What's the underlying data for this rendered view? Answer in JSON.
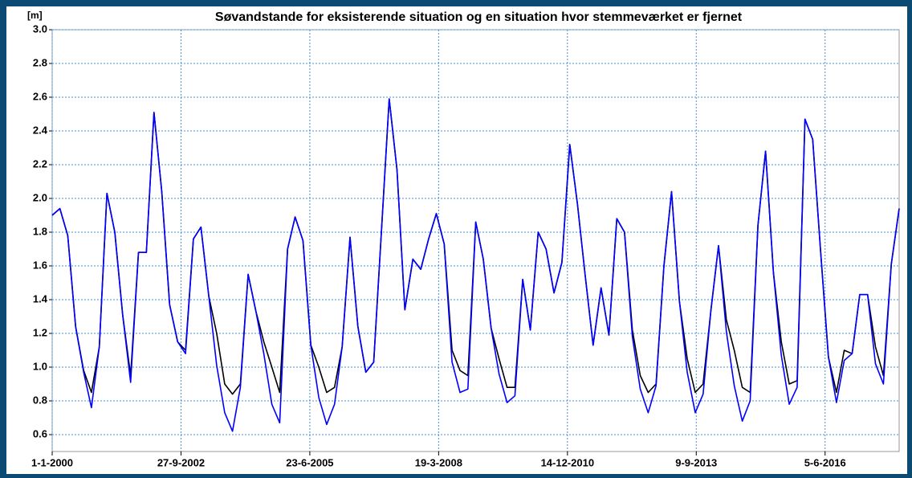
{
  "chart_data": {
    "type": "line",
    "title": "Søvandstande for eksisterende situation og en situation hvor stemmeværket er fjernet",
    "y_label": "[m]",
    "x": [
      "2000-01-01",
      "2000-03-01",
      "2000-05-01",
      "2000-07-01",
      "2000-09-01",
      "2000-11-01",
      "2001-01-01",
      "2001-03-01",
      "2001-05-01",
      "2001-07-01",
      "2001-09-01",
      "2001-11-01",
      "2002-01-01",
      "2002-03-01",
      "2002-05-01",
      "2002-07-01",
      "2002-09-01",
      "2002-11-01",
      "2003-01-01",
      "2003-03-01",
      "2003-05-01",
      "2003-07-01",
      "2003-09-01",
      "2003-11-01",
      "2004-01-01",
      "2004-03-01",
      "2004-05-01",
      "2004-07-01",
      "2004-09-01",
      "2004-11-01",
      "2005-01-01",
      "2005-03-01",
      "2005-05-01",
      "2005-07-01",
      "2005-09-01",
      "2005-11-01",
      "2006-01-01",
      "2006-03-01",
      "2006-05-01",
      "2006-07-01",
      "2006-09-01",
      "2006-11-01",
      "2007-01-01",
      "2007-03-01",
      "2007-05-01",
      "2007-07-01",
      "2007-09-01",
      "2007-11-01",
      "2008-01-01",
      "2008-03-01",
      "2008-05-01",
      "2008-07-01",
      "2008-09-01",
      "2008-11-01",
      "2009-01-01",
      "2009-03-01",
      "2009-05-01",
      "2009-07-01",
      "2009-09-01",
      "2009-11-01",
      "2010-01-01",
      "2010-03-01",
      "2010-05-01",
      "2010-07-01",
      "2010-09-01",
      "2010-11-01",
      "2011-01-01",
      "2011-03-01",
      "2011-05-01",
      "2011-07-01",
      "2011-09-01",
      "2011-11-01",
      "2012-01-01",
      "2012-03-01",
      "2012-05-01",
      "2012-07-01",
      "2012-09-01",
      "2012-11-01",
      "2013-01-01",
      "2013-03-01",
      "2013-05-01",
      "2013-07-01",
      "2013-09-01",
      "2013-11-01",
      "2014-01-01",
      "2014-03-01",
      "2014-05-01",
      "2014-07-01",
      "2014-09-01",
      "2014-11-01",
      "2015-01-01",
      "2015-03-01",
      "2015-05-01",
      "2015-07-01",
      "2015-09-01",
      "2015-11-01",
      "2016-01-01",
      "2016-03-01",
      "2016-05-01",
      "2016-07-01",
      "2016-09-01",
      "2016-11-01",
      "2017-01-01",
      "2017-03-01",
      "2017-05-01",
      "2017-07-01",
      "2017-09-01",
      "2017-11-01",
      "2018-01-01"
    ],
    "series": [
      {
        "color": "#000000",
        "values": [
          1.9,
          1.94,
          1.78,
          1.24,
          0.98,
          0.85,
          1.12,
          2.03,
          1.8,
          1.31,
          0.95,
          1.68,
          1.68,
          2.51,
          2.04,
          1.37,
          1.15,
          1.1,
          1.76,
          1.83,
          1.42,
          1.2,
          0.9,
          0.84,
          0.9,
          1.55,
          1.33,
          1.15,
          1.0,
          0.85,
          1.7,
          1.89,
          1.75,
          1.13,
          1.0,
          0.85,
          0.88,
          1.12,
          1.77,
          1.24,
          0.97,
          1.03,
          1.82,
          2.59,
          2.17,
          1.34,
          1.64,
          1.58,
          1.76,
          1.91,
          1.73,
          1.1,
          0.98,
          0.95,
          1.86,
          1.64,
          1.23,
          1.05,
          0.88,
          0.88,
          1.52,
          1.22,
          1.8,
          1.7,
          1.44,
          1.62,
          2.32,
          1.97,
          1.54,
          1.13,
          1.47,
          1.19,
          1.88,
          1.8,
          1.22,
          0.95,
          0.85,
          0.9,
          1.6,
          2.04,
          1.39,
          1.05,
          0.85,
          0.9,
          1.34,
          1.72,
          1.28,
          1.1,
          0.88,
          0.85,
          1.84,
          2.28,
          1.56,
          1.15,
          0.9,
          0.92,
          2.47,
          2.35,
          1.69,
          1.06,
          0.85,
          1.1,
          1.08,
          1.43,
          1.43,
          1.12,
          0.95,
          1.61,
          1.94
        ]
      },
      {
        "color": "#0000ff",
        "values": [
          1.9,
          1.94,
          1.78,
          1.24,
          0.97,
          0.76,
          1.12,
          2.03,
          1.8,
          1.31,
          0.91,
          1.68,
          1.68,
          2.51,
          2.04,
          1.37,
          1.15,
          1.08,
          1.76,
          1.83,
          1.42,
          1.01,
          0.73,
          0.62,
          0.88,
          1.55,
          1.33,
          1.08,
          0.78,
          0.67,
          1.7,
          1.89,
          1.75,
          1.13,
          0.82,
          0.66,
          0.78,
          1.12,
          1.77,
          1.24,
          0.97,
          1.03,
          1.82,
          2.59,
          2.17,
          1.34,
          1.64,
          1.58,
          1.76,
          1.91,
          1.73,
          1.03,
          0.85,
          0.87,
          1.86,
          1.64,
          1.23,
          0.96,
          0.79,
          0.83,
          1.52,
          1.22,
          1.8,
          1.7,
          1.44,
          1.62,
          2.32,
          1.97,
          1.54,
          1.13,
          1.47,
          1.19,
          1.88,
          1.8,
          1.18,
          0.87,
          0.73,
          0.89,
          1.6,
          2.04,
          1.39,
          0.97,
          0.73,
          0.84,
          1.34,
          1.72,
          1.21,
          0.89,
          0.68,
          0.8,
          1.84,
          2.28,
          1.56,
          1.07,
          0.78,
          0.88,
          2.47,
          2.35,
          1.69,
          1.06,
          0.79,
          1.04,
          1.08,
          1.43,
          1.43,
          1.02,
          0.9,
          1.61,
          1.94
        ]
      }
    ],
    "xlim": [
      "2000-01-01",
      "2018-01-01"
    ],
    "xticks": [
      {
        "value": "2000-01-01",
        "label": "1-1-2000"
      },
      {
        "value": "2002-09-27",
        "label": "27-9-2002"
      },
      {
        "value": "2005-06-23",
        "label": "23-6-2005"
      },
      {
        "value": "2008-03-19",
        "label": "19-3-2008"
      },
      {
        "value": "2010-12-14",
        "label": "14-12-2010"
      },
      {
        "value": "2013-09-09",
        "label": "9-9-2013"
      },
      {
        "value": "2016-06-05",
        "label": "5-6-2016"
      }
    ],
    "ylim": [
      0.5,
      3.0
    ],
    "yticks": [
      0.6,
      0.8,
      {
        "value": 1,
        "label": "1.0"
      },
      1.2,
      1.4,
      1.6,
      1.8,
      {
        "value": 2,
        "label": "2.0"
      },
      2.2,
      2.4,
      2.6,
      2.8,
      {
        "value": 3,
        "label": "3.0"
      }
    ],
    "grid": true
  }
}
